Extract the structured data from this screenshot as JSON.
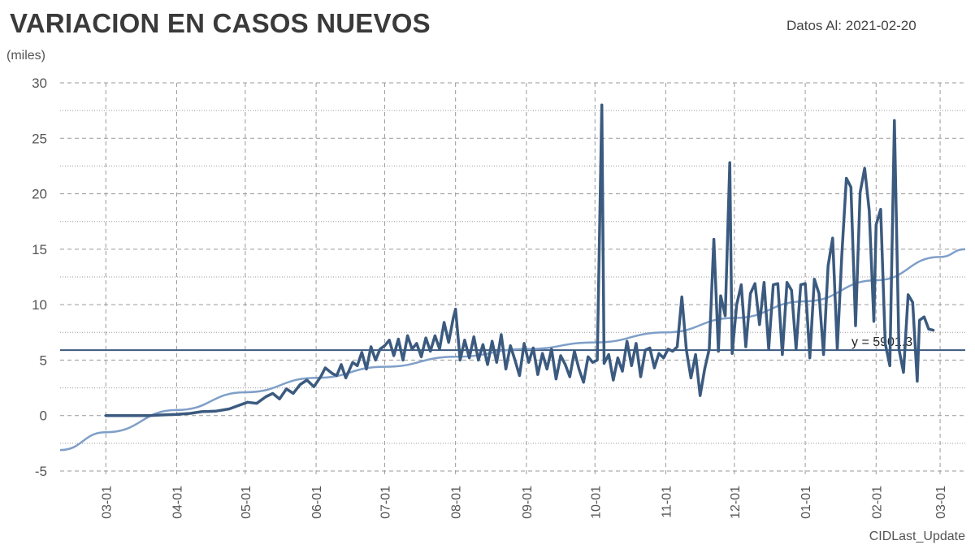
{
  "header": {
    "title": "VARIACION EN CASOS NUEVOS",
    "as_of": "Datos Al: 2021-02-20",
    "unit_label": "(miles)"
  },
  "footer": {
    "label": "CIDLast_Update"
  },
  "colors": {
    "series": "#3b5a7f",
    "trend": "#7f9fc8",
    "mean": "#3b5a7f",
    "grid": "#9a9a9a"
  },
  "chart_data": {
    "type": "line",
    "title": "VARIACION EN CASOS NUEVOS",
    "ylabel": "(miles)",
    "xlabel": "CIDLast_Update",
    "ylim": [
      -5,
      30
    ],
    "yticks": [
      -5,
      0,
      5,
      10,
      15,
      20,
      25,
      30
    ],
    "xlim": [
      "2020-02-10",
      "2021-03-12"
    ],
    "xticks": [
      {
        "date": "2020-03-01",
        "label": "03-01"
      },
      {
        "date": "2020-04-01",
        "label": "04-01"
      },
      {
        "date": "2020-05-01",
        "label": "05-01"
      },
      {
        "date": "2020-06-01",
        "label": "06-01"
      },
      {
        "date": "2020-07-01",
        "label": "07-01"
      },
      {
        "date": "2020-08-01",
        "label": "08-01"
      },
      {
        "date": "2020-09-01",
        "label": "09-01"
      },
      {
        "date": "2020-10-01",
        "label": "10-01"
      },
      {
        "date": "2020-11-01",
        "label": "11-01"
      },
      {
        "date": "2020-12-01",
        "label": "12-01"
      },
      {
        "date": "2021-01-01",
        "label": "01-01"
      },
      {
        "date": "2021-02-01",
        "label": "02-01"
      },
      {
        "date": "2021-03-01",
        "label": "03-01"
      }
    ],
    "grid": true,
    "legend": "none",
    "series": [
      {
        "values": [
          [
            "2020-03-01",
            0
          ],
          [
            "2020-03-10",
            0
          ],
          [
            "2020-03-20",
            0
          ],
          [
            "2020-03-25",
            0.05
          ],
          [
            "2020-04-01",
            0.1
          ],
          [
            "2020-04-07",
            0.2
          ],
          [
            "2020-04-12",
            0.35
          ],
          [
            "2020-04-18",
            0.4
          ],
          [
            "2020-04-24",
            0.6
          ],
          [
            "2020-04-28",
            0.9
          ],
          [
            "2020-05-02",
            1.2
          ],
          [
            "2020-05-06",
            1.1
          ],
          [
            "2020-05-10",
            1.7
          ],
          [
            "2020-05-13",
            2.0
          ],
          [
            "2020-05-16",
            1.5
          ],
          [
            "2020-05-19",
            2.4
          ],
          [
            "2020-05-22",
            2.0
          ],
          [
            "2020-05-25",
            2.8
          ],
          [
            "2020-05-28",
            3.2
          ],
          [
            "2020-05-31",
            2.6
          ],
          [
            "2020-06-03",
            3.5
          ],
          [
            "2020-06-05",
            4.3
          ],
          [
            "2020-06-08",
            3.8
          ],
          [
            "2020-06-10",
            3.6
          ],
          [
            "2020-06-12",
            4.6
          ],
          [
            "2020-06-14",
            3.4
          ],
          [
            "2020-06-17",
            4.8
          ],
          [
            "2020-06-19",
            4.5
          ],
          [
            "2020-06-21",
            5.7
          ],
          [
            "2020-06-23",
            4.2
          ],
          [
            "2020-06-25",
            6.2
          ],
          [
            "2020-06-27",
            5.0
          ],
          [
            "2020-06-29",
            6.0
          ],
          [
            "2020-07-01",
            6.3
          ],
          [
            "2020-07-03",
            6.8
          ],
          [
            "2020-07-05",
            5.4
          ],
          [
            "2020-07-07",
            6.9
          ],
          [
            "2020-07-09",
            5.0
          ],
          [
            "2020-07-11",
            7.2
          ],
          [
            "2020-07-13",
            6.0
          ],
          [
            "2020-07-15",
            6.5
          ],
          [
            "2020-07-17",
            5.3
          ],
          [
            "2020-07-19",
            7.0
          ],
          [
            "2020-07-21",
            5.8
          ],
          [
            "2020-07-23",
            7.2
          ],
          [
            "2020-07-25",
            6.0
          ],
          [
            "2020-07-27",
            8.4
          ],
          [
            "2020-07-29",
            6.6
          ],
          [
            "2020-07-31",
            8.8
          ],
          [
            "2020-08-01",
            9.6
          ],
          [
            "2020-08-03",
            5.0
          ],
          [
            "2020-08-05",
            6.8
          ],
          [
            "2020-08-07",
            5.2
          ],
          [
            "2020-08-09",
            7.1
          ],
          [
            "2020-08-11",
            5.0
          ],
          [
            "2020-08-13",
            6.4
          ],
          [
            "2020-08-15",
            4.6
          ],
          [
            "2020-08-17",
            6.7
          ],
          [
            "2020-08-19",
            4.8
          ],
          [
            "2020-08-21",
            7.3
          ],
          [
            "2020-08-23",
            4.2
          ],
          [
            "2020-08-25",
            6.3
          ],
          [
            "2020-08-27",
            5.0
          ],
          [
            "2020-08-29",
            3.6
          ],
          [
            "2020-08-31",
            6.5
          ],
          [
            "2020-09-02",
            4.8
          ],
          [
            "2020-09-04",
            6.1
          ],
          [
            "2020-09-06",
            3.7
          ],
          [
            "2020-09-08",
            5.6
          ],
          [
            "2020-09-10",
            4.2
          ],
          [
            "2020-09-12",
            6.0
          ],
          [
            "2020-09-14",
            3.3
          ],
          [
            "2020-09-16",
            5.4
          ],
          [
            "2020-09-18",
            4.6
          ],
          [
            "2020-09-20",
            3.5
          ],
          [
            "2020-09-22",
            5.8
          ],
          [
            "2020-09-24",
            4.2
          ],
          [
            "2020-09-26",
            3.0
          ],
          [
            "2020-09-28",
            5.3
          ],
          [
            "2020-09-30",
            4.8
          ],
          [
            "2020-10-02",
            5.0
          ],
          [
            "2020-10-04",
            28.0
          ],
          [
            "2020-10-05",
            4.7
          ],
          [
            "2020-10-07",
            5.5
          ],
          [
            "2020-10-09",
            3.2
          ],
          [
            "2020-10-11",
            5.2
          ],
          [
            "2020-10-13",
            4.0
          ],
          [
            "2020-10-15",
            6.7
          ],
          [
            "2020-10-17",
            4.5
          ],
          [
            "2020-10-19",
            6.5
          ],
          [
            "2020-10-21",
            3.5
          ],
          [
            "2020-10-23",
            5.9
          ],
          [
            "2020-10-25",
            6.1
          ],
          [
            "2020-10-27",
            4.3
          ],
          [
            "2020-10-29",
            5.6
          ],
          [
            "2020-10-31",
            5.2
          ],
          [
            "2020-11-02",
            6.0
          ],
          [
            "2020-11-04",
            5.8
          ],
          [
            "2020-11-06",
            6.2
          ],
          [
            "2020-11-08",
            10.7
          ],
          [
            "2020-11-10",
            5.9
          ],
          [
            "2020-11-12",
            3.4
          ],
          [
            "2020-11-14",
            5.5
          ],
          [
            "2020-11-16",
            1.8
          ],
          [
            "2020-11-18",
            4.2
          ],
          [
            "2020-11-20",
            6.0
          ],
          [
            "2020-11-22",
            15.9
          ],
          [
            "2020-11-24",
            5.8
          ],
          [
            "2020-11-25",
            10.8
          ],
          [
            "2020-11-27",
            9.0
          ],
          [
            "2020-11-29",
            22.8
          ],
          [
            "2020-11-30",
            5.6
          ],
          [
            "2020-12-02",
            10.0
          ],
          [
            "2020-12-04",
            11.8
          ],
          [
            "2020-12-06",
            6.2
          ],
          [
            "2020-12-08",
            11.0
          ],
          [
            "2020-12-10",
            11.9
          ],
          [
            "2020-12-12",
            8.2
          ],
          [
            "2020-12-14",
            12.0
          ],
          [
            "2020-12-16",
            6.0
          ],
          [
            "2020-12-18",
            11.8
          ],
          [
            "2020-12-20",
            11.9
          ],
          [
            "2020-12-22",
            5.5
          ],
          [
            "2020-12-24",
            12.0
          ],
          [
            "2020-12-26",
            11.3
          ],
          [
            "2020-12-28",
            6.0
          ],
          [
            "2020-12-30",
            11.8
          ],
          [
            "2021-01-01",
            11.9
          ],
          [
            "2021-01-03",
            5.2
          ],
          [
            "2021-01-05",
            12.3
          ],
          [
            "2021-01-07",
            11.0
          ],
          [
            "2021-01-09",
            5.5
          ],
          [
            "2021-01-11",
            13.5
          ],
          [
            "2021-01-13",
            16.0
          ],
          [
            "2021-01-15",
            6.0
          ],
          [
            "2021-01-17",
            14.5
          ],
          [
            "2021-01-19",
            21.4
          ],
          [
            "2021-01-21",
            20.6
          ],
          [
            "2021-01-23",
            8.1
          ],
          [
            "2021-01-25",
            20.1
          ],
          [
            "2021-01-27",
            22.3
          ],
          [
            "2021-01-29",
            18.5
          ],
          [
            "2021-01-31",
            8.5
          ],
          [
            "2021-02-01",
            17.2
          ],
          [
            "2021-02-03",
            18.6
          ],
          [
            "2021-02-05",
            6.5
          ],
          [
            "2021-02-07",
            4.5
          ],
          [
            "2021-02-09",
            26.6
          ],
          [
            "2021-02-11",
            6.0
          ],
          [
            "2021-02-13",
            3.9
          ],
          [
            "2021-02-15",
            10.9
          ],
          [
            "2021-02-17",
            10.2
          ],
          [
            "2021-02-19",
            3.1
          ],
          [
            "2021-02-20",
            8.6
          ],
          [
            "2021-02-22",
            8.9
          ],
          [
            "2021-02-24",
            7.8
          ],
          [
            "2021-02-26",
            7.7
          ]
        ]
      }
    ],
    "trendline": [
      [
        "2020-02-10",
        -3.1
      ],
      [
        "2020-03-01",
        -1.5
      ],
      [
        "2020-04-01",
        0.5
      ],
      [
        "2020-05-01",
        2.1
      ],
      [
        "2020-06-01",
        3.4
      ],
      [
        "2020-07-01",
        4.4
      ],
      [
        "2020-08-01",
        5.3
      ],
      [
        "2020-09-01",
        6.0
      ],
      [
        "2020-10-01",
        6.6
      ],
      [
        "2020-11-01",
        7.5
      ],
      [
        "2020-12-01",
        8.8
      ],
      [
        "2021-01-01",
        10.3
      ],
      [
        "2021-02-01",
        12.2
      ],
      [
        "2021-03-01",
        14.3
      ],
      [
        "2021-03-12",
        15.0
      ]
    ],
    "mean_line": {
      "value": 5.9013,
      "label": "y = 5901.3"
    }
  }
}
